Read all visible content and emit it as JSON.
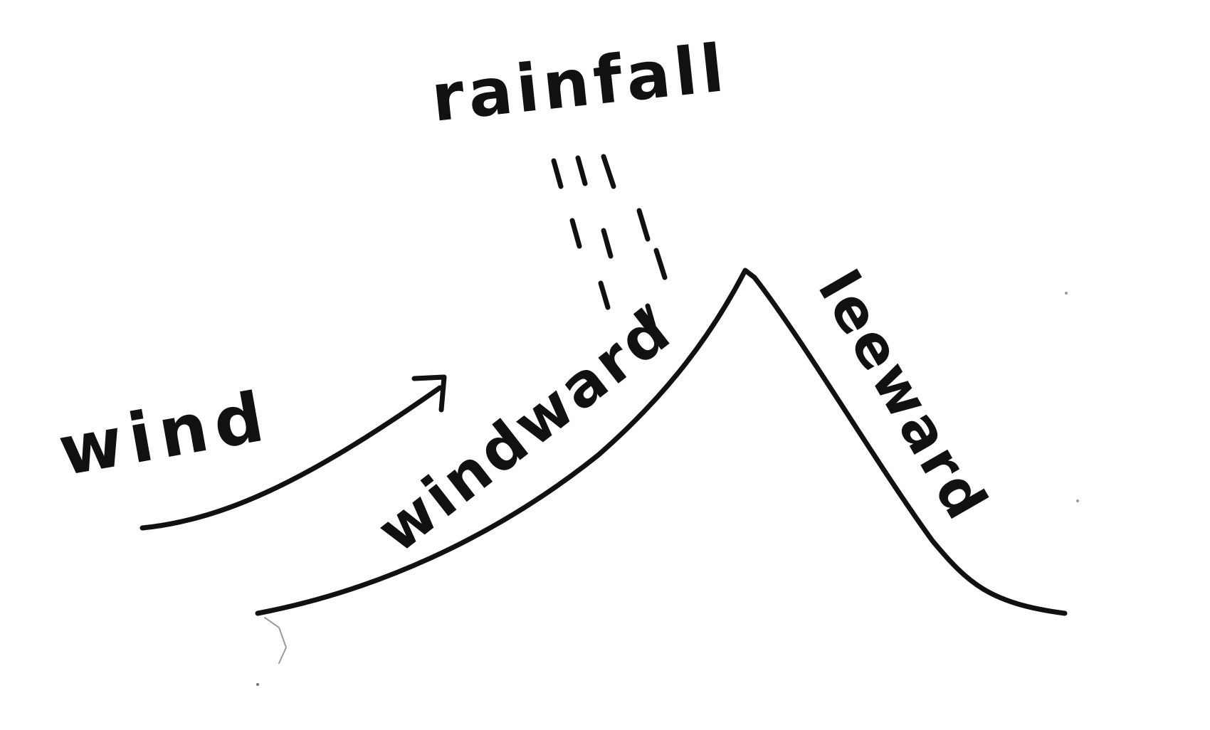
{
  "labels": {
    "rainfall": "rainfall",
    "wind": "wind",
    "windward": "windward",
    "leeward": "leeward"
  },
  "colors": {
    "ink": "#111111",
    "paper": "#ffffff"
  }
}
